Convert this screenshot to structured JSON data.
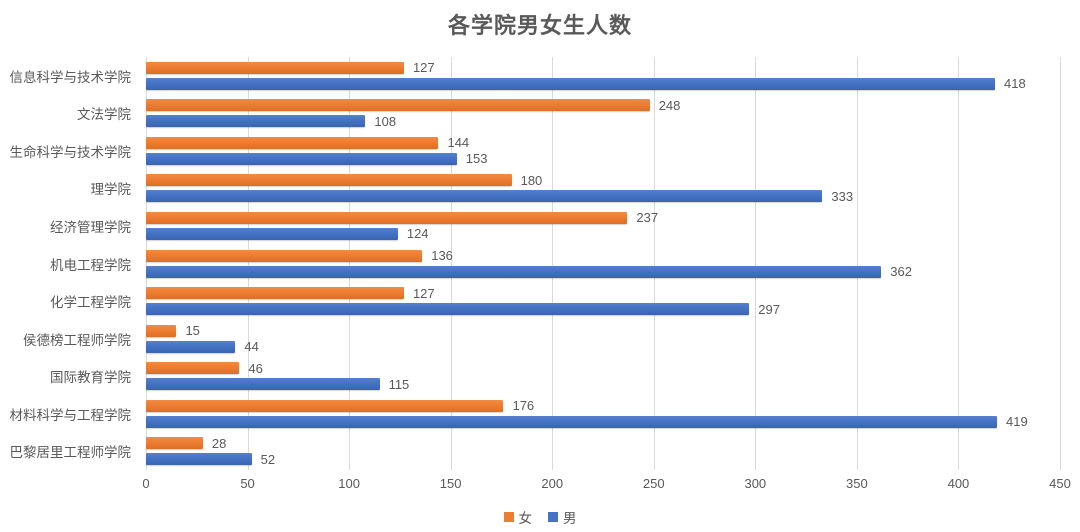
{
  "title": "各学院男女生人数",
  "colors": {
    "female": "#ED7D31",
    "male": "#4472C4",
    "text": "#595959",
    "gridline": "#D9D9D9"
  },
  "legend": {
    "items": [
      {
        "label": "女",
        "series_key": "female"
      },
      {
        "label": "男",
        "series_key": "male"
      }
    ],
    "position": "bottom-center"
  },
  "chart_data": {
    "type": "bar",
    "orientation": "horizontal",
    "title": "各学院男女生人数",
    "categories": [
      "信息科学与技术学院",
      "文法学院",
      "生命科学与技术学院",
      "理学院",
      "经济管理学院",
      "机电工程学院",
      "化学工程学院",
      "侯德榜工程师学院",
      "国际教育学院",
      "材料科学与工程学院",
      "巴黎居里工程师学院"
    ],
    "series": [
      {
        "name": "女",
        "key": "female",
        "color": "#ED7D31",
        "values": [
          127,
          248,
          144,
          180,
          237,
          136,
          127,
          15,
          46,
          176,
          28
        ]
      },
      {
        "name": "男",
        "key": "male",
        "color": "#4472C4",
        "values": [
          418,
          108,
          153,
          333,
          124,
          362,
          297,
          44,
          115,
          419,
          52
        ]
      }
    ],
    "x_ticks": [
      0,
      50,
      100,
      150,
      200,
      250,
      300,
      350,
      400,
      450
    ],
    "xlim": [
      0,
      450
    ],
    "grid": true,
    "data_labels": true,
    "legend_position": "bottom"
  }
}
